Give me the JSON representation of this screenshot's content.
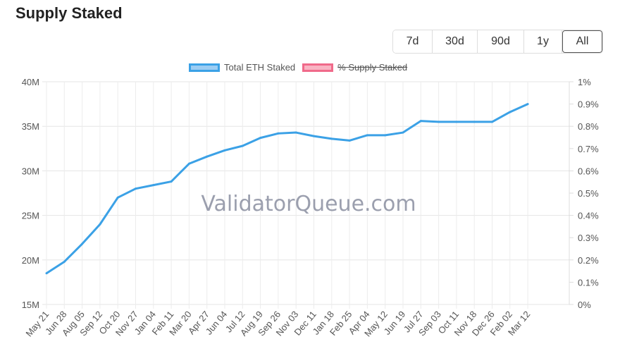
{
  "title": "Supply Staked",
  "range_buttons": [
    "7d",
    "30d",
    "90d",
    "1y",
    "All"
  ],
  "selected_range": "All",
  "watermark": "ValidatorQueue.com",
  "colors": {
    "line": "#3ba1e6",
    "fill": "#9ccdf3",
    "pink": "#f06a8a",
    "pink_fill": "#f9b4c3"
  },
  "chart_data": {
    "type": "line",
    "title": "",
    "legend": [
      {
        "name": "Total ETH Staked",
        "hidden": false
      },
      {
        "name": "% Supply Staked",
        "hidden": true
      }
    ],
    "legend_placement": "top",
    "grid": true,
    "x": [
      "May 21",
      "Jun 28",
      "Aug 05",
      "Sep 12",
      "Oct 20",
      "Nov 27",
      "Jan 04",
      "Feb 11",
      "Mar 20",
      "Apr 27",
      "Jun 04",
      "Jul 12",
      "Aug 19",
      "Sep 26",
      "Nov 03",
      "Dec 11",
      "Jan 18",
      "Feb 25",
      "Apr 04",
      "May 12",
      "Jun 19",
      "Jul 27",
      "Sep 03",
      "Oct 11",
      "Nov 18",
      "Dec 26",
      "Feb 02",
      "Mar 12"
    ],
    "series": [
      {
        "name": "Total ETH Staked",
        "values": [
          18.5,
          19.8,
          21.8,
          24.0,
          27.0,
          28.0,
          28.4,
          28.8,
          30.8,
          31.6,
          32.3,
          32.8,
          33.7,
          34.2,
          34.3,
          33.9,
          33.6,
          33.4,
          34.0,
          34.0,
          34.3,
          35.6,
          35.5,
          35.5,
          35.5,
          35.5,
          36.6,
          37.5
        ]
      }
    ],
    "y_left": {
      "ticks": [
        "15M",
        "20M",
        "25M",
        "30M",
        "35M",
        "40M"
      ],
      "range": [
        15,
        40
      ],
      "unit": "M"
    },
    "y_right": {
      "ticks": [
        "0%",
        "0.1%",
        "0.2%",
        "0.3%",
        "0.4%",
        "0.5%",
        "0.6%",
        "0.7%",
        "0.8%",
        "0.9%",
        "1%"
      ],
      "range": [
        0,
        1
      ]
    },
    "x_ticks": [
      "May 21",
      "Jun 28",
      "Aug 05",
      "Sep 12",
      "Oct 20",
      "Nov 27",
      "Jan 04",
      "Feb 11",
      "Mar 20",
      "Apr 27",
      "Jun 04",
      "Jul 12",
      "Aug 19",
      "Sep 26",
      "Nov 03",
      "Dec 11",
      "Jan 18",
      "Feb 25",
      "Apr 04",
      "May 12",
      "Jun 19",
      "Jul 27",
      "Sep 03",
      "Oct 11",
      "Nov 18",
      "Dec 26",
      "Feb 02",
      "Mar 12"
    ]
  }
}
